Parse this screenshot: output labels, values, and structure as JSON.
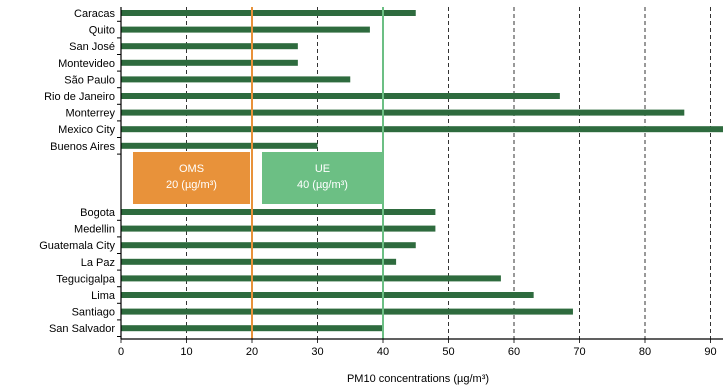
{
  "chart_data": {
    "type": "bar",
    "orientation": "horizontal",
    "xlabel": "PM10 concentrations (µg/m³)",
    "xlim": [
      0,
      90
    ],
    "xticks": [
      0,
      10,
      20,
      30,
      40,
      50,
      60,
      70,
      80,
      90
    ],
    "grid": "vertical dashed",
    "bar_color": "#2e6b3e",
    "groups": [
      {
        "categories": [
          "Caracas",
          "Quito",
          "San José",
          "Montevideo",
          "São Paulo",
          "Rio de Janeiro",
          "Monterrey",
          "Mexico City",
          "Buenos Aires"
        ],
        "values": [
          45,
          38,
          27,
          27,
          35,
          67,
          86,
          92,
          30
        ]
      },
      {
        "categories": [
          "Bogota",
          "Medellin",
          "Guatemala City",
          "La Paz",
          "Tegucigalpa",
          "Lima",
          "Santiago",
          "San Salvador"
        ],
        "values": [
          48,
          48,
          45,
          42,
          58,
          63,
          69,
          40
        ]
      }
    ],
    "reference_lines": [
      {
        "label": "OMS",
        "value_label": "20 (µg/m³)",
        "value": 20,
        "color": "#e8923a"
      },
      {
        "label": "UE",
        "value_label": "40 (µg/m³)",
        "value": 40,
        "color": "#6cbf84"
      }
    ]
  }
}
